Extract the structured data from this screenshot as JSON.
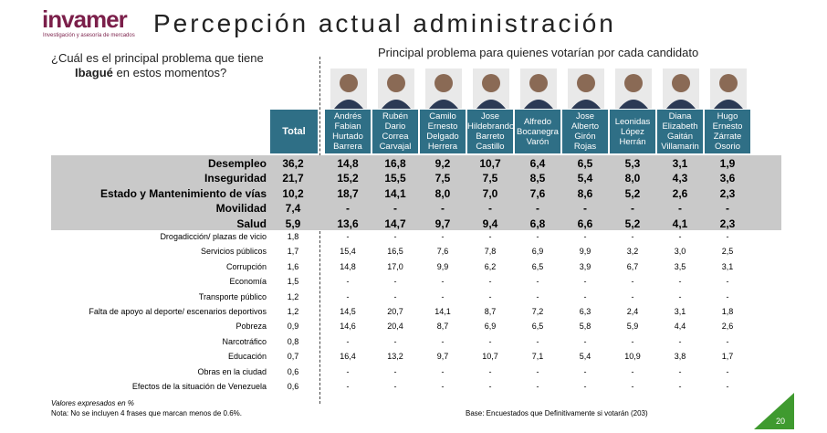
{
  "header": {
    "logo": "invamer",
    "logo_tagline": "Investigación y asesoría de mercados",
    "title": "Percepción actual administración"
  },
  "question": {
    "line1": "¿Cuál es el principal problema que tiene",
    "line2_bold": "Ibagué",
    "line2_rest": "en estos momentos?"
  },
  "candidates_title": "Principal problema para quienes votarían por cada candidato",
  "table": {
    "total_header": "Total",
    "candidates": [
      [
        "Andrés",
        "Fabian",
        "Hurtado",
        "Barrera"
      ],
      [
        "Rubén",
        "Dario",
        "Correa",
        "Carvajal"
      ],
      [
        "Camilo",
        "Ernesto",
        "Delgado",
        "Herrera"
      ],
      [
        "Jose",
        "Hildebrando",
        "Barreto",
        "Castillo"
      ],
      [
        "Alfredo",
        "Bocanegra",
        "Varón"
      ],
      [
        "Jose",
        "Alberto",
        "Girón Rojas"
      ],
      [
        "Leonidas",
        "López",
        "Herrán"
      ],
      [
        "Diana",
        "Elizabeth",
        "Gaitán",
        "Villamarin"
      ],
      [
        "Hugo",
        "Ernesto",
        "Zárrate",
        "Osorio"
      ]
    ],
    "rows": [
      [
        "Desempleo",
        "36,2",
        "14,8",
        "16,8",
        "9,2",
        "10,7",
        "6,4",
        "6,5",
        "5,3",
        "3,1",
        "1,9"
      ],
      [
        "Inseguridad",
        "21,7",
        "15,2",
        "15,5",
        "7,5",
        "7,5",
        "8,5",
        "5,4",
        "8,0",
        "4,3",
        "3,6"
      ],
      [
        "Estado y Mantenimiento de vías",
        "10,2",
        "18,7",
        "14,1",
        "8,0",
        "7,0",
        "7,6",
        "8,6",
        "5,2",
        "2,6",
        "2,3"
      ],
      [
        "Movilidad",
        "7,4",
        "-",
        "-",
        "-",
        "-",
        "-",
        "-",
        "-",
        "-",
        "-"
      ],
      [
        "Salud",
        "5,9",
        "13,6",
        "14,7",
        "9,7",
        "9,4",
        "6,8",
        "6,6",
        "5,2",
        "4,1",
        "2,3"
      ],
      [
        "Drogadicción/ plazas de vicio",
        "1,8",
        "-",
        "-",
        "-",
        "-",
        "-",
        "-",
        "-",
        "-",
        "-"
      ],
      [
        "Servicios públicos",
        "1,7",
        "15,4",
        "16,5",
        "7,6",
        "7,8",
        "6,9",
        "9,9",
        "3,2",
        "3,0",
        "2,5"
      ],
      [
        "Corrupción",
        "1,6",
        "14,8",
        "17,0",
        "9,9",
        "6,2",
        "6,5",
        "3,9",
        "6,7",
        "3,5",
        "3,1"
      ],
      [
        "Economía",
        "1,5",
        "-",
        "-",
        "-",
        "-",
        "-",
        "-",
        "-",
        "-",
        "-"
      ],
      [
        "Transporte público",
        "1,2",
        "-",
        "-",
        "-",
        "-",
        "-",
        "-",
        "-",
        "-",
        "-"
      ],
      [
        "Falta de apoyo al deporte/ escenarios deportivos",
        "1,2",
        "14,5",
        "20,7",
        "14,1",
        "8,7",
        "7,2",
        "6,3",
        "2,4",
        "3,1",
        "1,8"
      ],
      [
        "Pobreza",
        "0,9",
        "14,6",
        "20,4",
        "8,7",
        "6,9",
        "6,5",
        "5,8",
        "5,9",
        "4,4",
        "2,6"
      ],
      [
        "Narcotráfico",
        "0,8",
        "-",
        "-",
        "-",
        "-",
        "-",
        "-",
        "-",
        "-",
        "-"
      ],
      [
        "Educación",
        "0,7",
        "16,4",
        "13,2",
        "9,7",
        "10,7",
        "7,1",
        "5,4",
        "10,9",
        "3,8",
        "1,7"
      ],
      [
        "Obras en la ciudad",
        "0,6",
        "-",
        "-",
        "-",
        "-",
        "-",
        "-",
        "-",
        "-",
        "-"
      ],
      [
        "Efectos de la situación de Venezuela",
        "0,6",
        "-",
        "-",
        "-",
        "-",
        "-",
        "-",
        "-",
        "-",
        "-"
      ]
    ]
  },
  "footer": {
    "note1": "Valores expresados en %",
    "note2": "Nota: No se incluyen 4 frases que marcan menos de 0.6%.",
    "base": "Base: Encuestados que Definitivamente si votarán (203)",
    "page": "20"
  }
}
